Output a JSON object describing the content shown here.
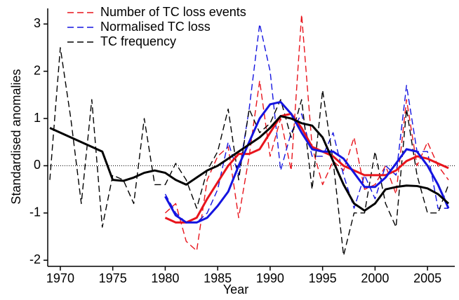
{
  "chart_data": {
    "type": "line",
    "xlabel": "Year",
    "ylabel": "Standardised anomalies",
    "x": [
      1969,
      1970,
      1971,
      1972,
      1973,
      1974,
      1975,
      1976,
      1977,
      1978,
      1979,
      1980,
      1981,
      1982,
      1983,
      1984,
      1985,
      1986,
      1987,
      1988,
      1989,
      1990,
      1991,
      1992,
      1993,
      1994,
      1995,
      1996,
      1997,
      1998,
      1999,
      2000,
      2001,
      2002,
      2003,
      2004,
      2005,
      2006,
      2007
    ],
    "xlim": [
      1968.8,
      2007.6
    ],
    "xticks": [
      1970,
      1975,
      1980,
      1985,
      1990,
      1995,
      2000,
      2005
    ],
    "ylim": [
      -2.1,
      3.33
    ],
    "yticks": [
      -2,
      -1,
      0,
      1,
      2,
      3
    ],
    "reference_line": 0,
    "legend": "upper left",
    "series": [
      {
        "name": "Number of TC loss events",
        "color": "#e8141c",
        "style": "dashed",
        "values": [
          null,
          null,
          null,
          null,
          null,
          null,
          null,
          null,
          null,
          null,
          null,
          -1.0,
          -0.8,
          -1.6,
          -1.8,
          -0.3,
          0.2,
          0.4,
          -1.1,
          0.2,
          1.8,
          0.2,
          1.0,
          -0.1,
          3.2,
          0.4,
          -0.4,
          0.1,
          -0.1,
          0.6,
          -0.5,
          -0.4,
          0.0,
          -0.6,
          1.4,
          0.0,
          0.5,
          0.0,
          -0.3
        ]
      },
      {
        "name": "Normalised TC loss",
        "color": "#1414e0",
        "style": "dashed",
        "values": [
          null,
          null,
          null,
          null,
          null,
          null,
          null,
          null,
          null,
          null,
          null,
          -0.6,
          -1.0,
          -1.2,
          -1.2,
          -1.0,
          -0.5,
          0.5,
          -0.2,
          1.2,
          3.0,
          2.0,
          -0.1,
          0.7,
          1.1,
          0.2,
          0.2,
          0.7,
          -0.2,
          -0.9,
          -0.2,
          -0.7,
          0.0,
          -0.2,
          1.7,
          0.3,
          0.3,
          -0.9,
          -0.9
        ]
      },
      {
        "name": "TC frequency",
        "color": "#000000",
        "style": "dashed",
        "values": [
          -0.3,
          2.5,
          1.0,
          -0.8,
          1.4,
          -1.3,
          -0.2,
          -0.3,
          -0.8,
          1.0,
          -0.4,
          -0.4,
          0.05,
          -0.3,
          -0.9,
          -0.1,
          0.3,
          1.2,
          -0.3,
          1.2,
          0.7,
          0.9,
          1.4,
          0.6,
          1.4,
          -0.5,
          1.6,
          0.1,
          -1.9,
          -1.0,
          -1.0,
          0.3,
          -0.8,
          -1.3,
          1.2,
          -0.2,
          -1.0,
          -1.0,
          -0.4
        ]
      },
      {
        "color": "#e8141c",
        "style": "solid",
        "values": [
          null,
          null,
          null,
          null,
          null,
          null,
          null,
          null,
          null,
          null,
          null,
          -1.1,
          -1.2,
          -1.2,
          -1.1,
          -0.7,
          -0.35,
          0.0,
          0.25,
          0.25,
          0.35,
          0.7,
          1.05,
          1.1,
          0.8,
          0.4,
          0.3,
          0.2,
          0.0,
          -0.1,
          -0.2,
          -0.2,
          -0.2,
          -0.1,
          0.1,
          0.2,
          0.15,
          0.05,
          -0.05
        ]
      },
      {
        "color": "#1414e0",
        "style": "solid",
        "values": [
          null,
          null,
          null,
          null,
          null,
          null,
          null,
          null,
          null,
          null,
          null,
          -0.65,
          -1.05,
          -1.2,
          -1.2,
          -1.1,
          -0.85,
          -0.55,
          0.0,
          0.5,
          1.0,
          1.3,
          1.35,
          1.1,
          0.7,
          0.35,
          0.3,
          0.3,
          0.15,
          -0.15,
          -0.45,
          -0.45,
          -0.25,
          0.05,
          0.35,
          0.3,
          0.0,
          -0.4,
          -0.9
        ]
      },
      {
        "color": "#000000",
        "style": "solid",
        "values": [
          0.8,
          0.7,
          0.6,
          0.5,
          0.4,
          0.3,
          -0.3,
          -0.32,
          -0.25,
          -0.15,
          -0.1,
          -0.15,
          -0.3,
          -0.4,
          -0.25,
          -0.1,
          0.0,
          0.15,
          0.3,
          0.45,
          0.6,
          0.8,
          1.05,
          1.0,
          0.9,
          0.85,
          0.6,
          0.1,
          -0.4,
          -0.8,
          -0.95,
          -0.8,
          -0.5,
          -0.45,
          -0.42,
          -0.43,
          -0.48,
          -0.6,
          -0.8
        ]
      }
    ]
  }
}
